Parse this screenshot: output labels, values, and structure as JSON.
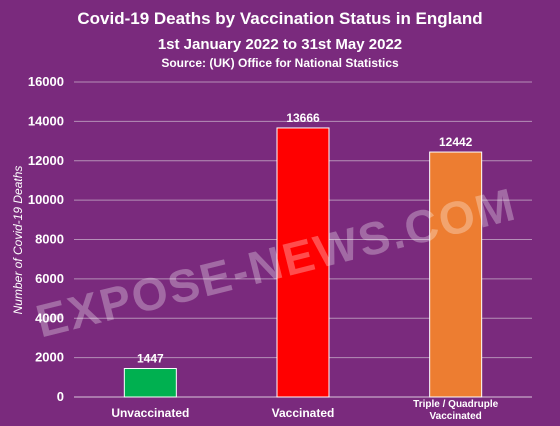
{
  "chart_data": {
    "type": "bar",
    "title": "Covid-19 Deaths by Vaccination Status in England",
    "subtitle": "1st January 2022 to 31st May 2022",
    "source": "Source:  (UK) Office for National Statistics",
    "ylabel": "Number of Covid-19 Deaths",
    "xlabel": "",
    "ylim": [
      0,
      16000
    ],
    "yticks": [
      0,
      2000,
      4000,
      6000,
      8000,
      10000,
      12000,
      14000,
      16000
    ],
    "grid": true,
    "categories": [
      [
        "Unvaccinated"
      ],
      [
        "Vaccinated"
      ],
      [
        "Triple / Quadruple",
        "Vaccinated"
      ]
    ],
    "values": [
      1447,
      13666,
      12442
    ],
    "colors": [
      "#00b050",
      "#ff0000",
      "#ed7d31"
    ],
    "watermark": "EXPOSE-NEWS.COM"
  }
}
